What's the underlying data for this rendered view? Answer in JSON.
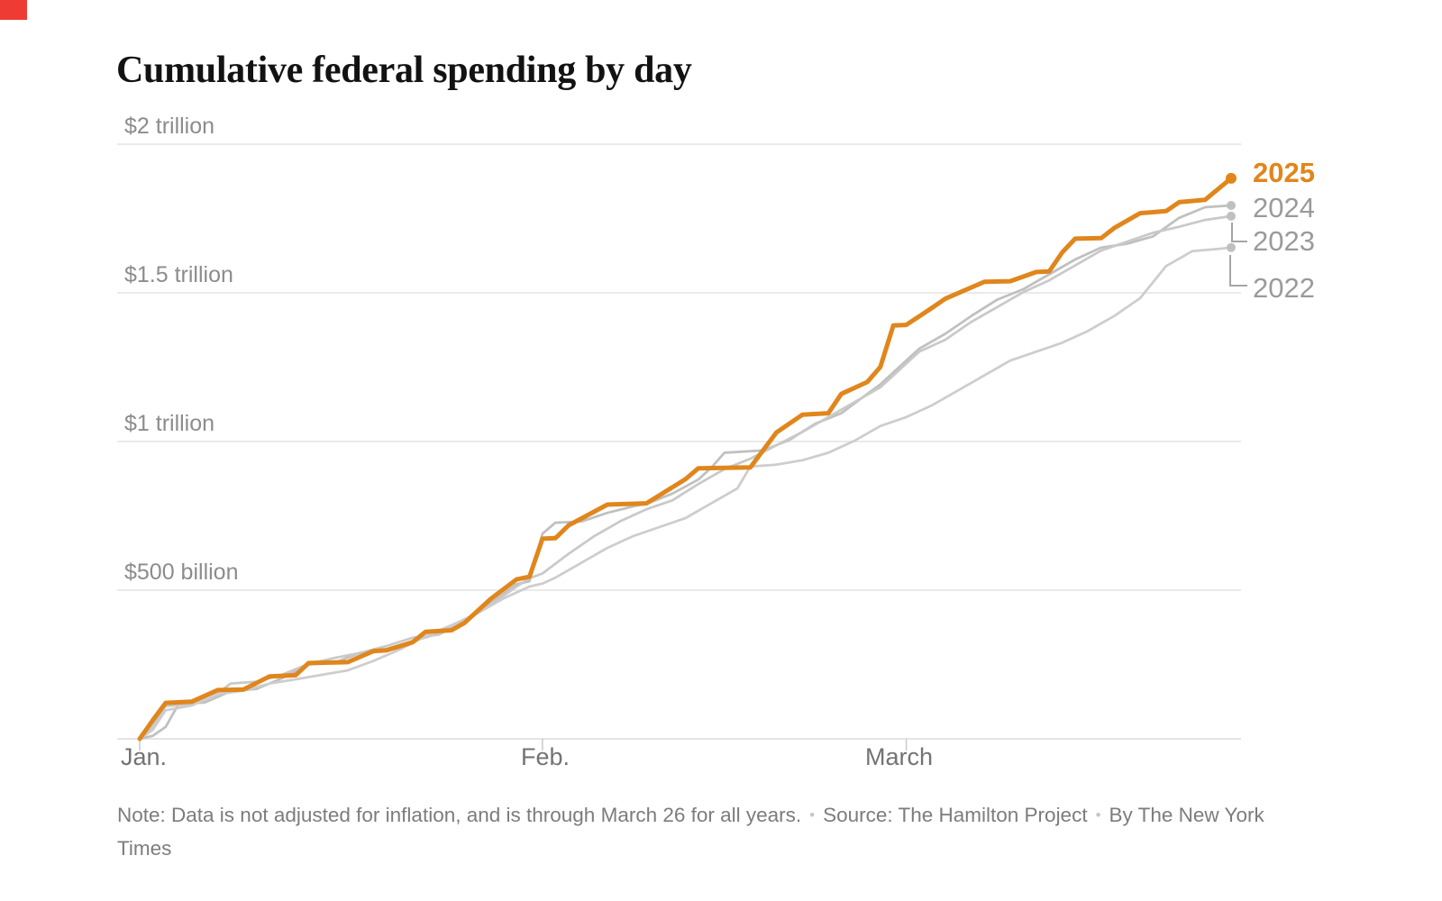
{
  "page": {
    "corner_fragment_color": "#EE3B33"
  },
  "chart_data": {
    "type": "line",
    "title": "Cumulative federal spending by day",
    "units": "billions of USD",
    "x_axis": {
      "ticks": [
        {
          "label": "Jan.",
          "day": 1
        },
        {
          "label": "Feb.",
          "day": 32
        },
        {
          "label": "March",
          "day": 60
        }
      ],
      "range_days": [
        1,
        85
      ]
    },
    "y_axis": {
      "ticks": [
        {
          "label": "$2 trillion",
          "value": 2000
        },
        {
          "label": "$1.5 trillion",
          "value": 1500
        },
        {
          "label": "$1 trillion",
          "value": 1000
        },
        {
          "label": "$500 billion",
          "value": 500
        }
      ],
      "range": [
        0,
        2070
      ],
      "gridlines": true
    },
    "legend_position": "right-of-line-ends",
    "series": [
      {
        "name": "2025",
        "color": "#E0861C",
        "highlight": true,
        "end_value_billions": 1885,
        "points": [
          [
            1,
            0
          ],
          [
            2,
            62
          ],
          [
            3,
            121
          ],
          [
            5,
            125
          ],
          [
            7,
            164
          ],
          [
            9,
            166
          ],
          [
            11,
            210
          ],
          [
            13,
            214
          ],
          [
            14,
            255
          ],
          [
            17,
            258
          ],
          [
            19,
            295
          ],
          [
            20,
            298
          ],
          [
            22,
            325
          ],
          [
            23,
            360
          ],
          [
            25,
            365
          ],
          [
            26,
            390
          ],
          [
            28,
            470
          ],
          [
            30,
            536
          ],
          [
            31,
            545
          ],
          [
            32,
            673
          ],
          [
            33,
            675
          ],
          [
            34,
            718
          ],
          [
            37,
            788
          ],
          [
            40,
            792
          ],
          [
            43,
            873
          ],
          [
            44,
            910
          ],
          [
            48,
            913
          ],
          [
            50,
            1030
          ],
          [
            52,
            1090
          ],
          [
            54,
            1095
          ],
          [
            55,
            1160
          ],
          [
            57,
            1200
          ],
          [
            58,
            1251
          ],
          [
            59,
            1390
          ],
          [
            60,
            1392
          ],
          [
            62,
            1450
          ],
          [
            63,
            1480
          ],
          [
            66,
            1537
          ],
          [
            68,
            1539
          ],
          [
            70,
            1570
          ],
          [
            71,
            1572
          ],
          [
            72,
            1636
          ],
          [
            73,
            1682
          ],
          [
            75,
            1684
          ],
          [
            76,
            1718
          ],
          [
            78,
            1768
          ],
          [
            80,
            1775
          ],
          [
            81,
            1805
          ],
          [
            83,
            1813
          ],
          [
            85,
            1885
          ]
        ]
      },
      {
        "name": "2024",
        "color": "#C0C0C0",
        "highlight": false,
        "end_value_billions": 1794,
        "points": [
          [
            1,
            0
          ],
          [
            2,
            10
          ],
          [
            3,
            40
          ],
          [
            4,
            118
          ],
          [
            6,
            122
          ],
          [
            8,
            160
          ],
          [
            10,
            168
          ],
          [
            12,
            205
          ],
          [
            14,
            250
          ],
          [
            16,
            256
          ],
          [
            18,
            290
          ],
          [
            20,
            302
          ],
          [
            22,
            328
          ],
          [
            24,
            355
          ],
          [
            26,
            400
          ],
          [
            28,
            455
          ],
          [
            30,
            520
          ],
          [
            31,
            530
          ],
          [
            32,
            690
          ],
          [
            33,
            727
          ],
          [
            35,
            731
          ],
          [
            37,
            760
          ],
          [
            39,
            782
          ],
          [
            40,
            790
          ],
          [
            42,
            825
          ],
          [
            44,
            872
          ],
          [
            45,
            912
          ],
          [
            46,
            962
          ],
          [
            49,
            970
          ],
          [
            51,
            1005
          ],
          [
            53,
            1060
          ],
          [
            55,
            1095
          ],
          [
            57,
            1160
          ],
          [
            58,
            1192
          ],
          [
            59,
            1232
          ],
          [
            60,
            1272
          ],
          [
            61,
            1312
          ],
          [
            63,
            1362
          ],
          [
            65,
            1422
          ],
          [
            67,
            1477
          ],
          [
            69,
            1512
          ],
          [
            71,
            1562
          ],
          [
            73,
            1612
          ],
          [
            75,
            1652
          ],
          [
            77,
            1665
          ],
          [
            79,
            1690
          ],
          [
            81,
            1752
          ],
          [
            83,
            1788
          ],
          [
            85,
            1794
          ]
        ]
      },
      {
        "name": "2023",
        "color": "#C9C9C9",
        "highlight": false,
        "end_value_billions": 1758,
        "points": [
          [
            1,
            0
          ],
          [
            2,
            42
          ],
          [
            3,
            110
          ],
          [
            5,
            118
          ],
          [
            7,
            152
          ],
          [
            8,
            186
          ],
          [
            10,
            192
          ],
          [
            12,
            216
          ],
          [
            14,
            252
          ],
          [
            16,
            272
          ],
          [
            18,
            289
          ],
          [
            20,
            312
          ],
          [
            22,
            340
          ],
          [
            24,
            350
          ],
          [
            26,
            395
          ],
          [
            28,
            450
          ],
          [
            30,
            512
          ],
          [
            31,
            540
          ],
          [
            32,
            556
          ],
          [
            34,
            622
          ],
          [
            36,
            682
          ],
          [
            38,
            732
          ],
          [
            40,
            772
          ],
          [
            42,
            802
          ],
          [
            44,
            857
          ],
          [
            46,
            907
          ],
          [
            48,
            942
          ],
          [
            50,
            987
          ],
          [
            52,
            1032
          ],
          [
            54,
            1082
          ],
          [
            56,
            1132
          ],
          [
            58,
            1182
          ],
          [
            59,
            1222
          ],
          [
            61,
            1302
          ],
          [
            63,
            1342
          ],
          [
            65,
            1402
          ],
          [
            67,
            1452
          ],
          [
            69,
            1502
          ],
          [
            71,
            1542
          ],
          [
            73,
            1592
          ],
          [
            75,
            1642
          ],
          [
            77,
            1672
          ],
          [
            79,
            1702
          ],
          [
            81,
            1722
          ],
          [
            83,
            1745
          ],
          [
            85,
            1758
          ]
        ]
      },
      {
        "name": "2022",
        "color": "#CDCDCD",
        "highlight": false,
        "end_value_billions": 1652,
        "points": [
          [
            1,
            0
          ],
          [
            2,
            30
          ],
          [
            3,
            96
          ],
          [
            5,
            112
          ],
          [
            7,
            150
          ],
          [
            9,
            162
          ],
          [
            11,
            186
          ],
          [
            13,
            200
          ],
          [
            15,
            215
          ],
          [
            17,
            230
          ],
          [
            19,
            262
          ],
          [
            21,
            300
          ],
          [
            23,
            345
          ],
          [
            25,
            382
          ],
          [
            27,
            422
          ],
          [
            29,
            472
          ],
          [
            31,
            512
          ],
          [
            32,
            522
          ],
          [
            33,
            542
          ],
          [
            35,
            592
          ],
          [
            37,
            642
          ],
          [
            39,
            682
          ],
          [
            41,
            712
          ],
          [
            43,
            742
          ],
          [
            45,
            792
          ],
          [
            47,
            842
          ],
          [
            48,
            916
          ],
          [
            50,
            922
          ],
          [
            52,
            937
          ],
          [
            54,
            962
          ],
          [
            56,
            1002
          ],
          [
            58,
            1052
          ],
          [
            60,
            1082
          ],
          [
            62,
            1122
          ],
          [
            64,
            1172
          ],
          [
            66,
            1222
          ],
          [
            68,
            1272
          ],
          [
            70,
            1302
          ],
          [
            72,
            1332
          ],
          [
            74,
            1372
          ],
          [
            76,
            1422
          ],
          [
            78,
            1482
          ],
          [
            80,
            1590
          ],
          [
            82,
            1640
          ],
          [
            84,
            1648
          ],
          [
            85,
            1652
          ]
        ]
      }
    ]
  },
  "footer": {
    "note": "Note: Data is not adjusted for inflation, and is through March 26 for all years.",
    "source": "Source: The Hamilton Project",
    "byline": "By The New York Times",
    "separator": "•"
  }
}
